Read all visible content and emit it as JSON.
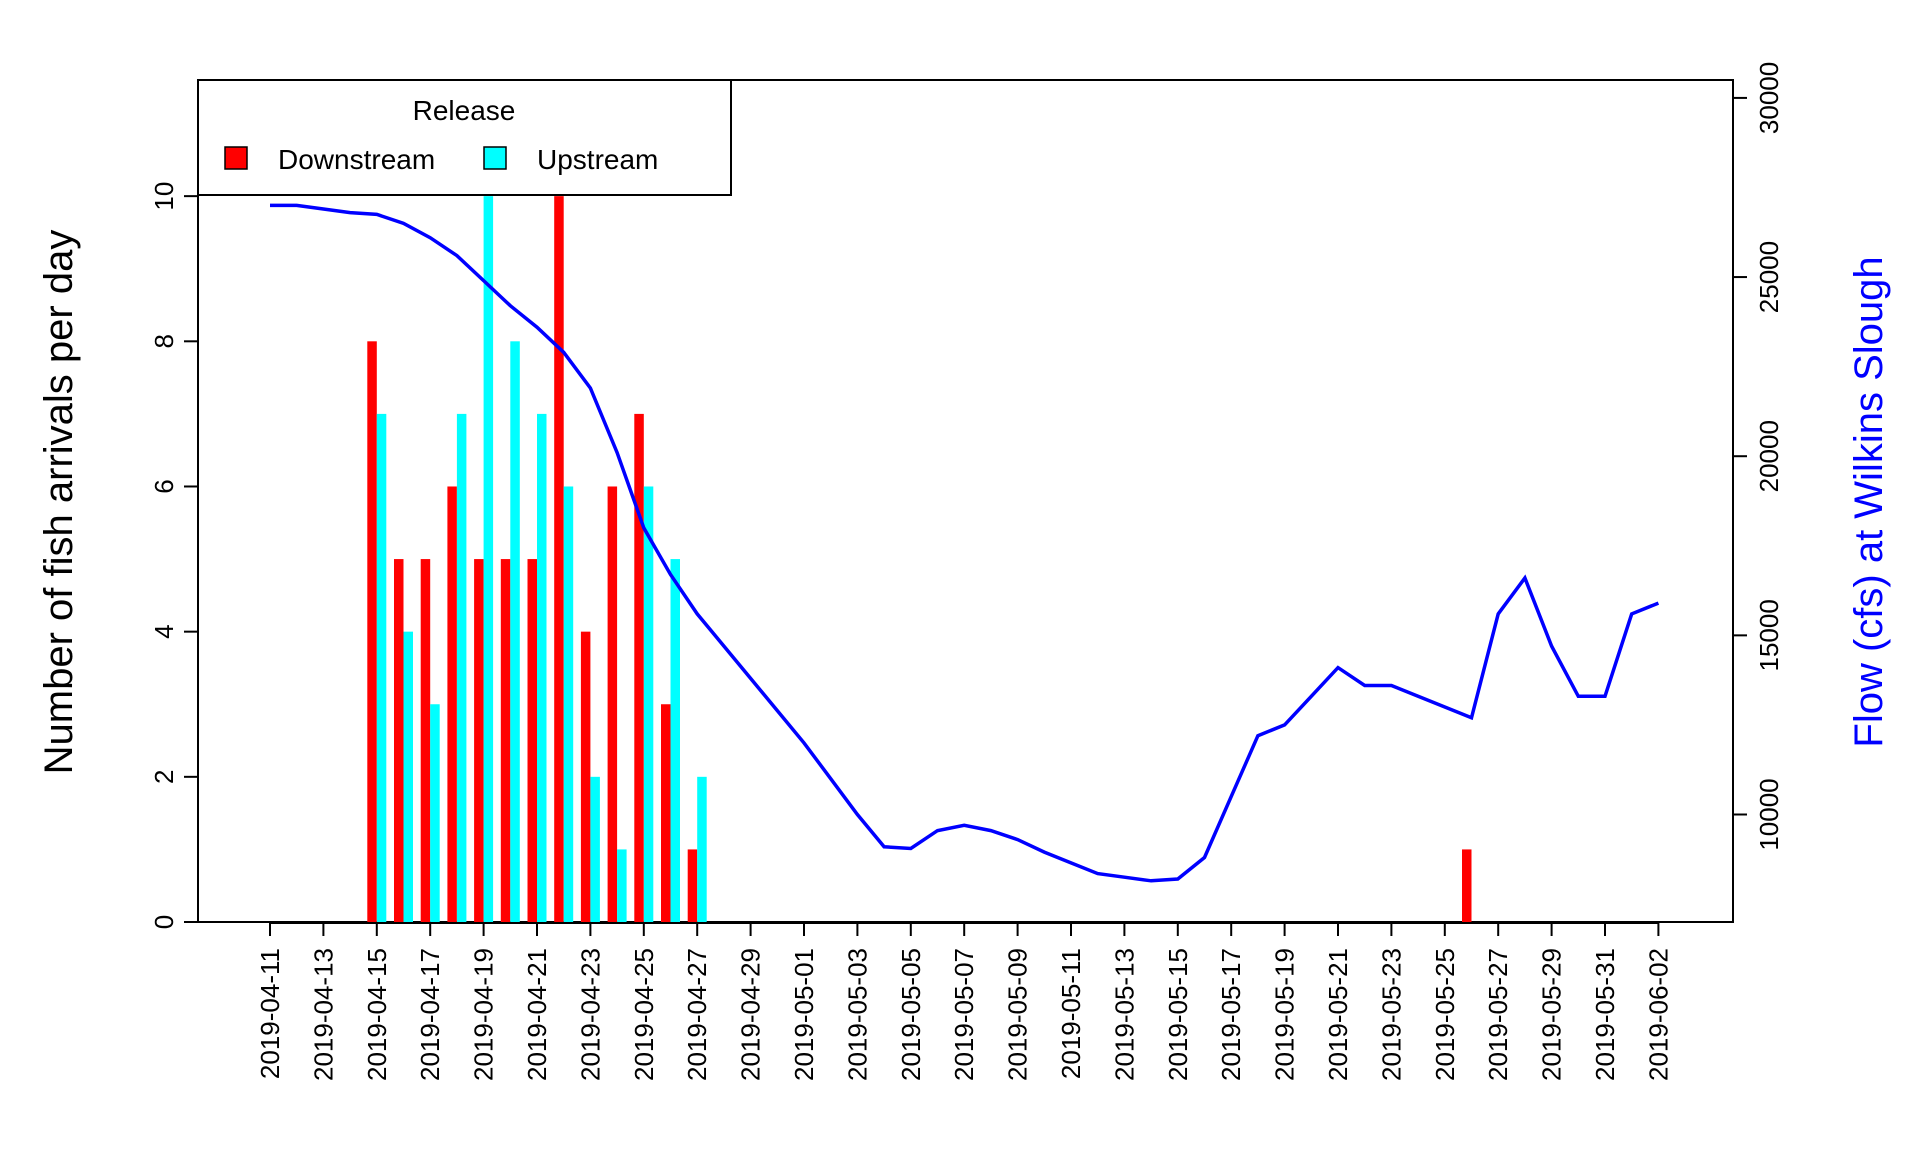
{
  "chart_data": {
    "type": "bar",
    "categories": [
      "2019-04-11",
      "2019-04-12",
      "2019-04-13",
      "2019-04-14",
      "2019-04-15",
      "2019-04-16",
      "2019-04-17",
      "2019-04-18",
      "2019-04-19",
      "2019-04-20",
      "2019-04-21",
      "2019-04-22",
      "2019-04-23",
      "2019-04-24",
      "2019-04-25",
      "2019-04-26",
      "2019-04-27",
      "2019-04-28",
      "2019-04-29",
      "2019-04-30",
      "2019-05-01",
      "2019-05-02",
      "2019-05-03",
      "2019-05-04",
      "2019-05-05",
      "2019-05-06",
      "2019-05-07",
      "2019-05-08",
      "2019-05-09",
      "2019-05-10",
      "2019-05-11",
      "2019-05-12",
      "2019-05-13",
      "2019-05-14",
      "2019-05-15",
      "2019-05-16",
      "2019-05-17",
      "2019-05-18",
      "2019-05-19",
      "2019-05-20",
      "2019-05-21",
      "2019-05-22",
      "2019-05-23",
      "2019-05-24",
      "2019-05-25",
      "2019-05-26",
      "2019-05-27",
      "2019-05-28",
      "2019-05-29",
      "2019-05-30",
      "2019-05-31",
      "2019-06-01",
      "2019-06-02"
    ],
    "x_tick_labels": [
      "2019-04-11",
      "2019-04-13",
      "2019-04-15",
      "2019-04-17",
      "2019-04-19",
      "2019-04-21",
      "2019-04-23",
      "2019-04-25",
      "2019-04-27",
      "2019-04-29",
      "2019-05-01",
      "2019-05-03",
      "2019-05-05",
      "2019-05-07",
      "2019-05-09",
      "2019-05-11",
      "2019-05-13",
      "2019-05-15",
      "2019-05-17",
      "2019-05-19",
      "2019-05-21",
      "2019-05-23",
      "2019-05-25",
      "2019-05-27",
      "2019-05-29",
      "2019-05-31",
      "2019-06-02"
    ],
    "series": [
      {
        "name": "Downstream",
        "color": "#ff0000",
        "values": [
          0,
          0,
          0,
          0,
          8,
          5,
          5,
          6,
          5,
          5,
          5,
          10,
          4,
          6,
          7,
          3,
          1,
          0,
          0,
          0,
          0,
          0,
          0,
          0,
          0,
          0,
          0,
          0,
          0,
          0,
          0,
          0,
          0,
          0,
          0,
          0,
          0,
          0,
          0,
          0,
          0,
          0,
          0,
          0,
          0,
          1,
          0,
          0,
          0,
          0,
          0,
          0,
          0
        ]
      },
      {
        "name": "Upstream",
        "color": "#00ffff",
        "values": [
          0,
          0,
          0,
          0,
          7,
          4,
          3,
          7,
          10,
          8,
          7,
          6,
          2,
          1,
          6,
          5,
          2,
          0,
          0,
          0,
          0,
          0,
          0,
          0,
          0,
          0,
          0,
          0,
          0,
          0,
          0,
          0,
          0,
          0,
          0,
          0,
          0,
          0,
          0,
          0,
          0,
          0,
          0,
          0,
          0,
          0,
          0,
          0,
          0,
          0,
          0,
          0,
          0
        ]
      }
    ],
    "flow": {
      "color": "#0000ff",
      "values": [
        27000,
        27000,
        26900,
        26800,
        26750,
        26500,
        26100,
        25600,
        24900,
        24200,
        23600,
        22900,
        21900,
        20100,
        18000,
        16700,
        15600,
        14700,
        13800,
        12900,
        12000,
        11000,
        10000,
        9100,
        9050,
        9550,
        9700,
        9550,
        9300,
        8950,
        8650,
        8350,
        8250,
        8150,
        8200,
        8800,
        10500,
        12200,
        12500,
        13300,
        14100,
        13600,
        13600,
        13300,
        13000,
        12700,
        15600,
        16600,
        14700,
        13300,
        13300,
        15600,
        15900
      ]
    },
    "ylabel": "Number of fish arrivals per day",
    "y2label": "Flow (cfs) at Wilkins Slough",
    "yticks": [
      "0",
      "2",
      "4",
      "6",
      "8",
      "10"
    ],
    "y2ticks": [
      "10000",
      "15000",
      "20000",
      "25000",
      "30000"
    ],
    "ylim": [
      0,
      11.6
    ],
    "y2lim": [
      7000,
      30500
    ],
    "legend": {
      "title": "Release",
      "position": "top-left",
      "items": [
        "Downstream",
        "Upstream"
      ]
    },
    "grid": false
  }
}
